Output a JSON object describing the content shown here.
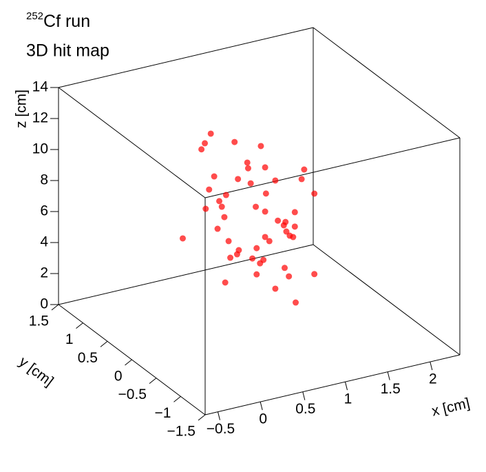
{
  "chart_data": {
    "type": "scatter3d",
    "title_isotope": "252",
    "title": "Cf run",
    "subtitle": "3D hit map",
    "x_label": "x [cm]",
    "y_label": "y [cm]",
    "z_label": "z [cm]",
    "color": "#ff0000",
    "xlim": [
      -0.65,
      2.35
    ],
    "ylim": [
      -1.5,
      1.5
    ],
    "zlim": [
      0,
      14
    ],
    "xticks": [
      {
        "value": -0.5,
        "label": "−0.5"
      },
      0,
      0.5,
      1,
      1.5,
      2
    ],
    "yticks": [
      {
        "value": -1.5,
        "label": "−1.5"
      },
      {
        "value": -1,
        "label": "−1"
      },
      {
        "value": -0.5,
        "label": "−0.5"
      },
      0,
      0.5,
      1,
      1.5
    ],
    "zticks": [
      0,
      2,
      4,
      6,
      8,
      10,
      12,
      14
    ],
    "x": [
      0.28,
      0.21,
      0.17,
      0.56,
      0.87,
      0.71,
      0.72,
      0.92,
      0.32,
      0.6,
      0.75,
      1.04,
      1.38,
      1.35,
      0.26,
      0.46,
      0.93,
      1.5,
      0.38,
      0.41,
      0.22,
      0.81,
      0.92,
      1.27,
      0.44,
      1.07,
      1.16,
      1.14,
      1.27,
      0.36,
      1.17,
      1.21,
      1.25,
      0.92,
      0.97,
      -0.05,
      0.49,
      0.82,
      0.61,
      0.59,
      0.51,
      0.77,
      0.9,
      0.86,
      1.15,
      0.82,
      1.2,
      1.5,
      0.45,
      1.04,
      1.28
    ],
    "y": [
      0,
      0,
      0,
      0,
      0,
      0,
      0,
      0,
      0,
      0,
      0,
      0,
      0,
      0,
      0,
      0,
      0,
      0,
      0,
      0,
      0,
      0,
      0,
      0,
      0,
      0,
      0,
      0,
      0,
      0,
      0,
      0,
      0,
      0,
      0,
      0,
      0,
      0,
      0,
      0,
      0,
      0,
      0,
      0,
      0,
      0,
      0,
      0,
      0,
      0,
      0
    ],
    "z": [
      13.38,
      12.85,
      12.51,
      12.48,
      11.82,
      10.96,
      10.58,
      10.38,
      10.57,
      10.04,
      9.57,
      9.38,
      9.65,
      9.07,
      9.8,
      9.19,
      8.68,
      7.94,
      8.9,
      8.5,
      8.61,
      7.98,
      7.53,
      7.04,
      7.79,
      6.75,
      6.55,
      6.36,
      6.11,
      7.14,
      5.92,
      5.6,
      5.46,
      5.89,
      5.56,
      7.05,
      6.18,
      5.3,
      5.44,
      5.2,
      5.08,
      4.7,
      4.44,
      4.27,
      3.6,
      3.61,
      2.99,
      2.75,
      3.56,
      2.4,
      1.2
    ]
  }
}
